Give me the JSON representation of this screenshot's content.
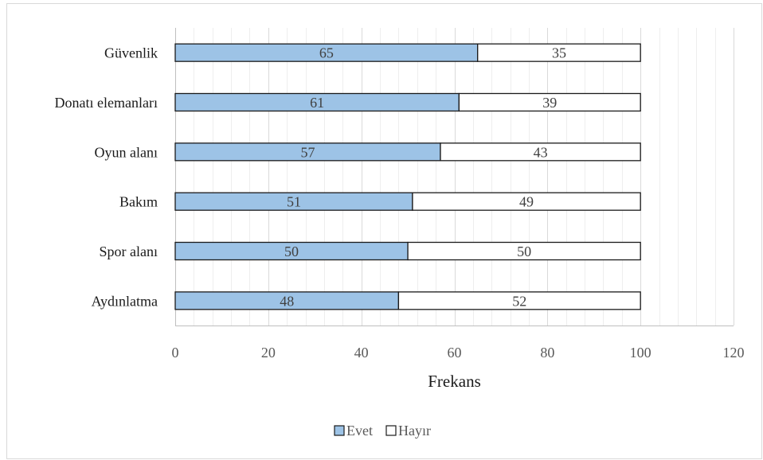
{
  "chart_data": {
    "type": "bar",
    "orientation": "horizontal",
    "stacked": true,
    "categories": [
      "Aydınlatma",
      "Spor alanı",
      "Bakım",
      "Oyun alanı",
      "Donatı elemanları",
      "Güvenlik"
    ],
    "series": [
      {
        "name": "Evet",
        "values": [
          48,
          50,
          51,
          57,
          61,
          65
        ],
        "color": "#9dc3e6"
      },
      {
        "name": "Hayır",
        "values": [
          52,
          50,
          49,
          43,
          39,
          35
        ],
        "color": "#ffffff"
      }
    ],
    "xlabel": "Frekans",
    "ylabel": "",
    "xlim": [
      0,
      120
    ],
    "x_ticks": [
      "0",
      "20",
      "40",
      "60",
      "80",
      "100",
      "120"
    ],
    "grid": true,
    "legend_position": "bottom"
  }
}
